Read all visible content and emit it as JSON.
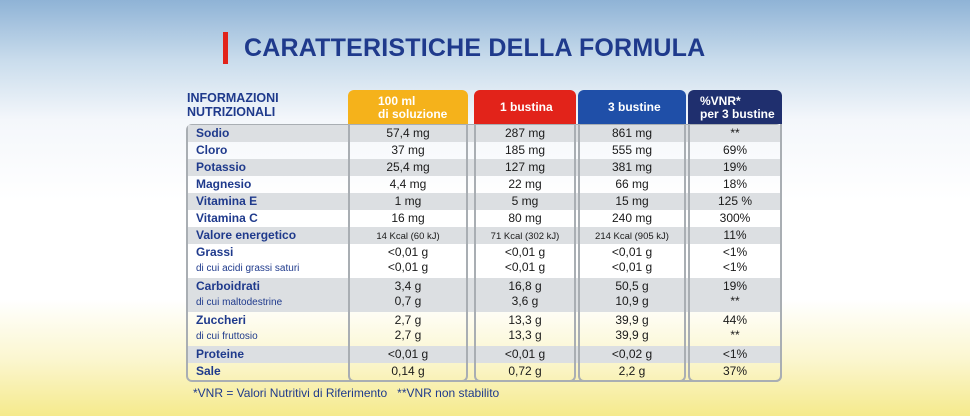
{
  "title": "CARATTERISTICHE DELLA FORMULA",
  "info_label_line1": "INFORMAZIONI",
  "info_label_line2": "NUTRIZIONALI",
  "columns": [
    {
      "line1": "100 ml",
      "line2": "di soluzione",
      "color": "#f5b21b"
    },
    {
      "line1": "1 bustina",
      "line2": "",
      "color": "#e2231a"
    },
    {
      "line1": "3 bustine",
      "line2": "",
      "color": "#1f4fa8"
    },
    {
      "line1": "%VNR*",
      "line2": "per 3 bustine",
      "color": "#1f2f6e"
    }
  ],
  "rows": [
    {
      "label": "Sodio",
      "values": [
        "57,4 mg",
        "287 mg",
        "861 mg",
        "**"
      ]
    },
    {
      "label": "Cloro",
      "values": [
        "37 mg",
        "185 mg",
        "555 mg",
        "69%"
      ]
    },
    {
      "label": "Potassio",
      "values": [
        "25,4 mg",
        "127 mg",
        "381 mg",
        "19%"
      ]
    },
    {
      "label": "Magnesio",
      "values": [
        "4,4 mg",
        "22 mg",
        "66 mg",
        "18%"
      ]
    },
    {
      "label": "Vitamina E",
      "values": [
        "1 mg",
        "5 mg",
        "15 mg",
        "125 %"
      ]
    },
    {
      "label": "Vitamina C",
      "values": [
        "16 mg",
        "80 mg",
        "240 mg",
        "300%"
      ]
    },
    {
      "label": "Valore energetico",
      "values": [
        "14 Kcal (60 kJ)",
        "71 Kcal (302 kJ)",
        "214 Kcal (905 kJ)",
        "11%"
      ]
    },
    {
      "label": "Grassi",
      "sub": "di cui acidi grassi saturi",
      "values": [
        "<0,01 g",
        "<0,01 g",
        "<0,01 g",
        "<1%"
      ],
      "sub_values": [
        "<0,01 g",
        "<0,01 g",
        "<0,01 g",
        "<1%"
      ]
    },
    {
      "label": "Carboidrati",
      "sub": "di cui maltodestrine",
      "values": [
        "3,4 g",
        "16,8 g",
        "50,5 g",
        "19%"
      ],
      "sub_values": [
        "0,7 g",
        "3,6 g",
        "10,9 g",
        "**"
      ]
    },
    {
      "label": "Zuccheri",
      "sub": "di cui fruttosio",
      "values": [
        "2,7 g",
        "13,3 g",
        "39,9 g",
        "44%"
      ],
      "sub_values": [
        "2,7 g",
        "13,3 g",
        "39,9 g",
        "**"
      ]
    },
    {
      "label": "Proteine",
      "values": [
        "<0,01 g",
        "<0,01 g",
        "<0,02 g",
        "<1%"
      ]
    },
    {
      "label": "Sale",
      "values": [
        "0,14 g",
        "0,72 g",
        "2,2 g",
        "37%"
      ]
    }
  ],
  "footnote": "*VNR = Valori Nutritivi di Riferimento   **VNR non stabilito"
}
